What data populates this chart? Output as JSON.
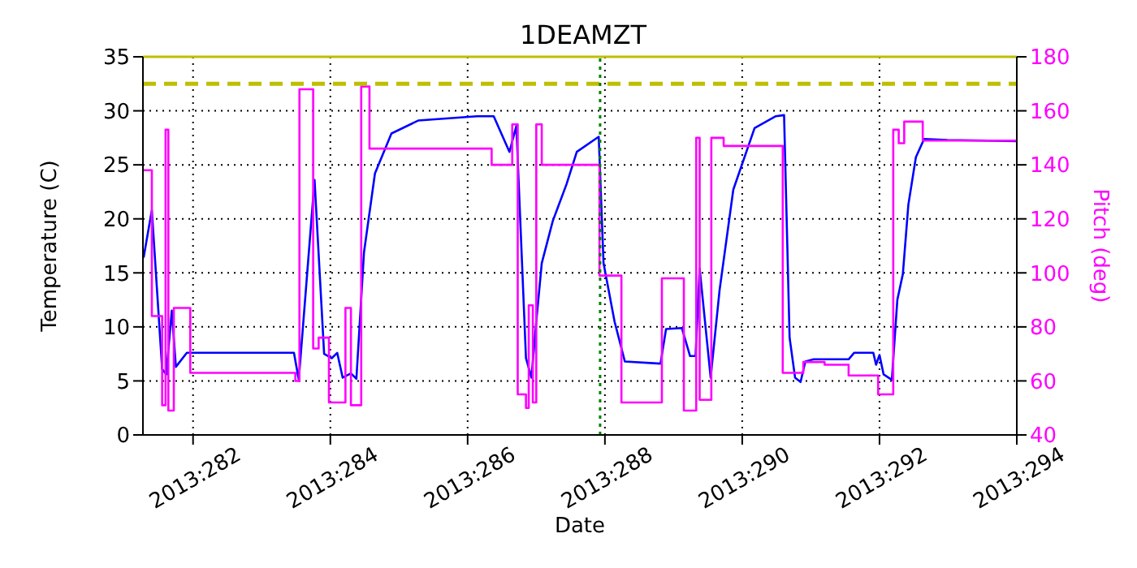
{
  "chart_data": {
    "type": "line",
    "title": "1DEAMZT",
    "xlabel": "Date",
    "ylabel": "Temperature (C)",
    "y2label": "Pitch (deg)",
    "xlim": [
      "2013-10-08T06:29",
      "2013-10-21"
    ],
    "xticks": [
      {
        "value": "2013-10-09",
        "label": "2013:282"
      },
      {
        "value": "2013-10-11",
        "label": "2013:284"
      },
      {
        "value": "2013-10-13",
        "label": "2013:286"
      },
      {
        "value": "2013-10-15",
        "label": "2013:288"
      },
      {
        "value": "2013-10-17",
        "label": "2013:290"
      },
      {
        "value": "2013-10-19",
        "label": "2013:292"
      },
      {
        "value": "2013-10-21",
        "label": "2013:294"
      }
    ],
    "ylim": [
      0,
      35
    ],
    "yticks": [
      0,
      5,
      10,
      15,
      20,
      25,
      30,
      35
    ],
    "y2lim": [
      40,
      180
    ],
    "y2ticks": [
      40,
      60,
      80,
      100,
      120,
      140,
      160,
      180
    ],
    "grid": true,
    "marker": "none",
    "line_style": "solid",
    "series": [
      {
        "color": "#0000ff",
        "x": [
          "2013-10-08T06:43",
          "2013-10-08T09:36",
          "2013-10-08T13:12",
          "2013-10-08T14:38",
          "2013-10-08T16:34",
          "2013-10-08T18:00",
          "2013-10-08T21:50",
          "2013-10-10T11:17",
          "2013-10-10T12:58",
          "2013-10-10T18:29",
          "2013-10-10T21:50",
          "2013-10-11T00:29",
          "2013-10-11T02:24",
          "2013-10-11T04:19",
          "2013-10-11T07:12",
          "2013-10-11T09:07",
          "2013-10-11T11:46",
          "2013-10-11T15:36",
          "2013-10-11T21:22",
          "2013-10-12T06:43",
          "2013-10-13T03:22",
          "2013-10-13T09:07",
          "2013-10-13T14:38",
          "2013-10-13T17:02",
          "2013-10-13T20:24",
          "2013-10-13T22:19",
          "2013-10-14T00:00",
          "2013-10-14T01:55",
          "2013-10-14T05:46",
          "2013-10-14T10:34",
          "2013-10-14T14:10",
          "2013-10-14T21:50",
          "2013-10-14T23:31",
          "2013-10-15T03:22",
          "2013-10-15T06:58",
          "2013-10-15T19:26",
          "2013-10-15T21:22",
          "2013-10-16T02:53",
          "2013-10-16T05:46",
          "2013-10-16T07:41",
          "2013-10-16T09:07",
          "2013-10-16T12:58",
          "2013-10-16T16:05",
          "2013-10-16T20:53",
          "2013-10-17T04:19",
          "2013-10-17T11:46",
          "2013-10-17T14:38",
          "2013-10-17T16:34",
          "2013-10-17T18:29",
          "2013-10-17T20:24",
          "2013-10-17T22:05",
          "2013-10-18T00:58",
          "2013-10-18T13:12",
          "2013-10-18T15:07",
          "2013-10-18T21:50",
          "2013-10-18T22:48",
          "2013-10-19T00:00",
          "2013-10-19T01:26",
          "2013-10-19T04:19",
          "2013-10-19T06:14",
          "2013-10-19T08:10",
          "2013-10-19T10:05",
          "2013-10-19T12:43",
          "2013-10-19T15:36",
          "2013-10-19T23:46",
          "2013-10-21T00:00"
        ],
        "values": [
          16.4,
          20.8,
          6.1,
          5.6,
          11.5,
          6.3,
          7.6,
          7.6,
          5.1,
          23.6,
          7.5,
          7.1,
          7.6,
          5.3,
          5.7,
          5.2,
          16.9,
          24.2,
          27.9,
          29.1,
          29.5,
          29.5,
          26.2,
          28.6,
          7.1,
          5.3,
          10.5,
          15.9,
          19.8,
          23.2,
          26.2,
          27.6,
          15.9,
          10.5,
          6.8,
          6.6,
          9.8,
          9.9,
          7.3,
          7.3,
          15.4,
          5.3,
          13.4,
          22.7,
          28.4,
          29.5,
          29.6,
          9.0,
          5.3,
          4.9,
          6.8,
          7.0,
          7.0,
          7.6,
          7.6,
          6.5,
          7.4,
          5.6,
          5.1,
          12.5,
          14.9,
          21.3,
          25.7,
          27.4,
          27.3,
          27.2
        ]
      },
      {
        "color": "#ff00ff",
        "axis": "y2",
        "type": "step",
        "x": [
          "2013-10-08T06:43",
          "2013-10-08T09:36",
          "2013-10-08T13:12",
          "2013-10-08T14:24",
          "2013-10-08T15:22",
          "2013-10-08T17:17",
          "2013-10-08T23:02",
          "2013-10-10T11:46",
          "2013-10-10T13:12",
          "2013-10-10T18:00",
          "2013-10-10T19:55",
          "2013-10-10T23:31",
          "2013-10-11T05:17",
          "2013-10-11T07:12",
          "2013-10-11T10:48",
          "2013-10-11T13:41",
          "2013-10-13T08:24",
          "2013-10-13T15:36",
          "2013-10-13T17:31",
          "2013-10-13T20:24",
          "2013-10-13T21:22",
          "2013-10-13T22:48",
          "2013-10-14T00:00",
          "2013-10-14T01:55",
          "2013-10-14T22:05",
          "2013-10-15T05:46",
          "2013-10-15T19:55",
          "2013-10-16T03:36",
          "2013-10-16T07:55",
          "2013-10-16T09:07",
          "2013-10-16T13:12",
          "2013-10-16T17:31",
          "2013-10-17T14:10",
          "2013-10-17T21:22",
          "2013-10-18T04:48",
          "2013-10-18T13:12",
          "2013-10-18T23:31",
          "2013-10-19T04:48",
          "2013-10-19T06:43",
          "2013-10-19T08:38",
          "2013-10-19T15:07",
          "2013-10-21T00:00"
        ],
        "values": [
          138,
          84,
          51,
          153,
          49,
          87,
          63,
          60,
          168,
          72,
          76,
          52,
          87,
          51,
          169,
          146,
          140,
          155,
          55,
          50,
          88,
          52,
          155,
          140,
          99,
          52,
          98,
          49,
          150,
          53,
          150,
          147,
          63,
          67,
          66,
          62,
          55,
          153,
          148,
          156,
          149,
          149
        ]
      }
    ],
    "ref_lines": [
      {
        "axis": "y",
        "value": 32.5,
        "color": "#bfbf00",
        "line_style": "dashed"
      },
      {
        "axis": "y",
        "value": 35,
        "color": "#bfbf00",
        "line_style": "solid"
      },
      {
        "axis": "x",
        "value": "2013-10-14T22:19",
        "color": "#008000",
        "line_style": "dotted"
      }
    ]
  }
}
